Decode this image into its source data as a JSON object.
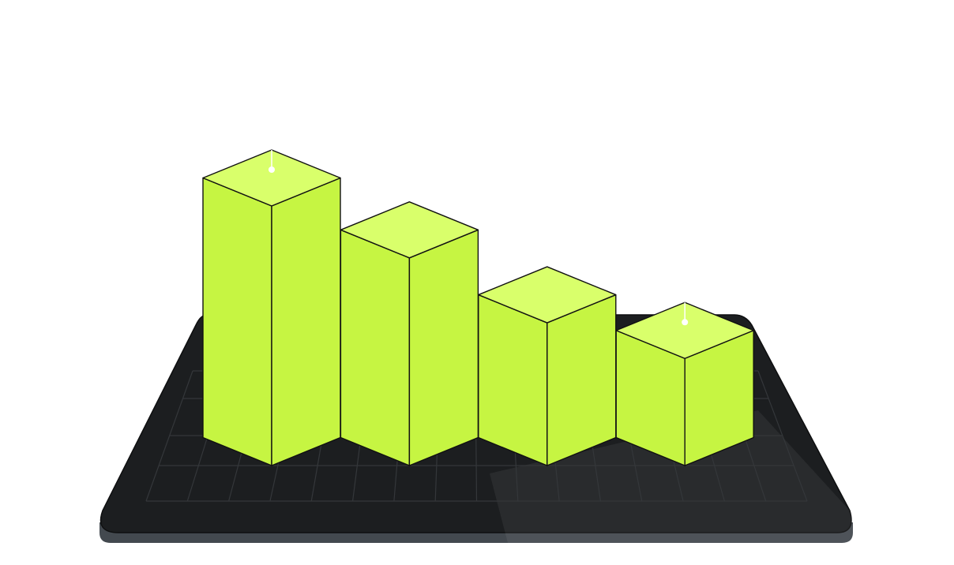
{
  "chart_data": {
    "type": "bar",
    "style": "3d-isometric",
    "categories": [
      "",
      "",
      "",
      ""
    ],
    "values": [
      4,
      3.2,
      2.2,
      1.65
    ],
    "ylim": [
      0,
      4
    ],
    "grid": true,
    "legend": "none",
    "markers": [
      0,
      3
    ],
    "colors": {
      "bar_front": "#c6f542",
      "bar_top": "#d9ff6b",
      "bar_edge": "#111111",
      "platform": "#1c1e20",
      "platform_edge": "#43494f",
      "grid_line": "#34373a",
      "marker": "#ffffff"
    }
  }
}
